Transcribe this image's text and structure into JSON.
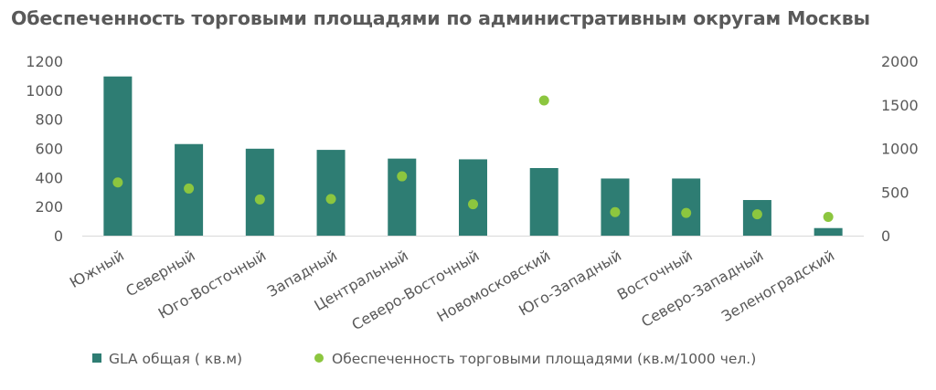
{
  "chart_data": {
    "type": "bar",
    "title": "Обеспеченность торговыми площадями по административным округам Москвы",
    "categories": [
      "Южный",
      "Северный",
      "Юго-Восточный",
      "Западный",
      "Центральный",
      "Северо-Восточный",
      "Новомосковский",
      "Юго-Западный",
      "Восточный",
      "Северо-Западный",
      "Зеленоградский"
    ],
    "series": [
      {
        "name": "GLA общая ( кв.м)",
        "kind": "bar",
        "axis": "left",
        "color": "#2e7d73",
        "values": [
          1095,
          630,
          598,
          590,
          530,
          525,
          465,
          393,
          393,
          245,
          52
        ]
      },
      {
        "name": "Обеспеченность торговыми площадями (кв.м/1000 чел.)",
        "kind": "scatter",
        "axis": "right",
        "color": "#8cc63f",
        "values": [
          610,
          540,
          415,
          420,
          680,
          360,
          1550,
          270,
          260,
          245,
          215
        ]
      }
    ],
    "y_left": {
      "min": 0,
      "max": 1200,
      "ticks": [
        0,
        200,
        400,
        600,
        800,
        1000,
        1200
      ]
    },
    "y_right": {
      "min": 0,
      "max": 2000,
      "ticks": [
        0,
        500,
        1000,
        1500,
        2000
      ]
    },
    "legend_position": "bottom",
    "grid": false
  }
}
